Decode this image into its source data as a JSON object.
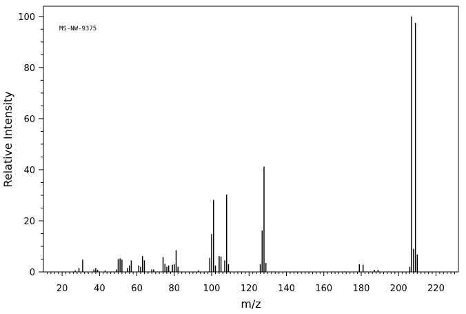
{
  "chart_data": {
    "type": "bar",
    "annotation": "MS-NW-9375",
    "xlabel": "m/z",
    "ylabel": "Relative Intensity",
    "xlim": [
      10,
      232
    ],
    "ylim": [
      0,
      104
    ],
    "x_ticks": [
      20,
      40,
      60,
      80,
      100,
      120,
      140,
      160,
      180,
      200,
      220
    ],
    "y_ticks": [
      0,
      20,
      40,
      60,
      80,
      100
    ],
    "grid": false,
    "series": [
      {
        "peaks": [
          {
            "x": 27,
            "y": 0.6
          },
          {
            "x": 29,
            "y": 1.5
          },
          {
            "x": 31,
            "y": 4.8
          },
          {
            "x": 37,
            "y": 1.0
          },
          {
            "x": 38,
            "y": 1.5
          },
          {
            "x": 39,
            "y": 0.8
          },
          {
            "x": 43,
            "y": 0.6
          },
          {
            "x": 49,
            "y": 1.0
          },
          {
            "x": 50,
            "y": 5.0
          },
          {
            "x": 51,
            "y": 5.3
          },
          {
            "x": 52,
            "y": 4.8
          },
          {
            "x": 55,
            "y": 1.5
          },
          {
            "x": 56,
            "y": 2.5
          },
          {
            "x": 57,
            "y": 4.5
          },
          {
            "x": 61,
            "y": 2.5
          },
          {
            "x": 62,
            "y": 2.0
          },
          {
            "x": 63,
            "y": 6.2
          },
          {
            "x": 64,
            "y": 4.5
          },
          {
            "x": 68,
            "y": 1.0
          },
          {
            "x": 69,
            "y": 1.0
          },
          {
            "x": 74,
            "y": 5.8
          },
          {
            "x": 75,
            "y": 3.2
          },
          {
            "x": 76,
            "y": 2.0
          },
          {
            "x": 77,
            "y": 2.5
          },
          {
            "x": 79,
            "y": 2.8
          },
          {
            "x": 80,
            "y": 3.0
          },
          {
            "x": 81,
            "y": 8.5
          },
          {
            "x": 82,
            "y": 2.0
          },
          {
            "x": 93,
            "y": 0.6
          },
          {
            "x": 99,
            "y": 5.5
          },
          {
            "x": 100,
            "y": 14.8
          },
          {
            "x": 101,
            "y": 28.2
          },
          {
            "x": 102,
            "y": 2.5
          },
          {
            "x": 104,
            "y": 6.2
          },
          {
            "x": 105,
            "y": 6.0
          },
          {
            "x": 107,
            "y": 4.5
          },
          {
            "x": 108,
            "y": 30.3
          },
          {
            "x": 109,
            "y": 3.0
          },
          {
            "x": 126,
            "y": 3.0
          },
          {
            "x": 127,
            "y": 16.2
          },
          {
            "x": 128,
            "y": 41.2
          },
          {
            "x": 129,
            "y": 3.5
          },
          {
            "x": 179,
            "y": 3.0
          },
          {
            "x": 181,
            "y": 2.8
          },
          {
            "x": 187,
            "y": 0.8
          },
          {
            "x": 189,
            "y": 0.8
          },
          {
            "x": 206,
            "y": 2.0
          },
          {
            "x": 207,
            "y": 100.0
          },
          {
            "x": 208,
            "y": 9.0
          },
          {
            "x": 209,
            "y": 97.5
          },
          {
            "x": 210,
            "y": 6.8
          }
        ]
      }
    ]
  }
}
